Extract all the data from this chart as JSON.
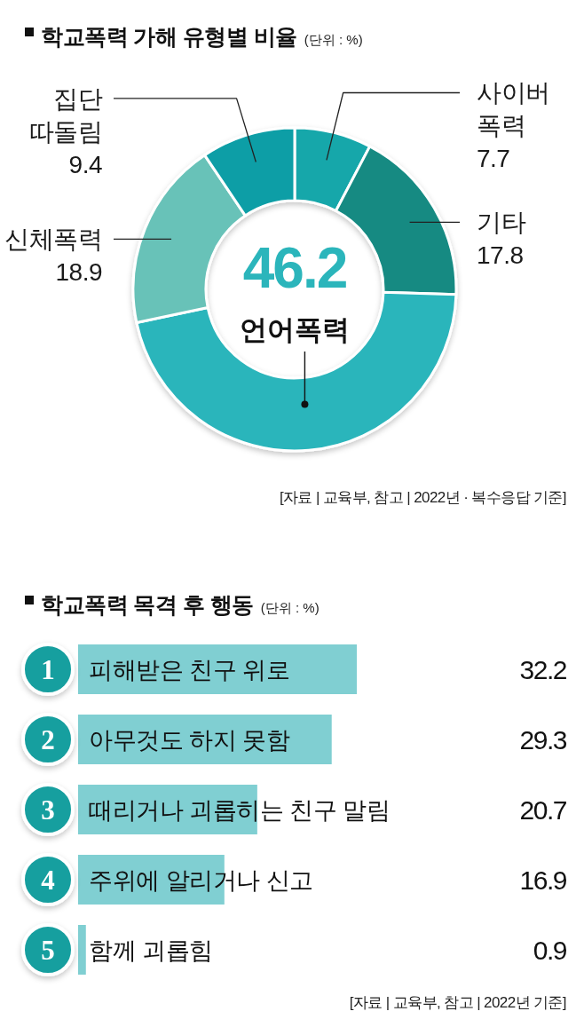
{
  "chart_data": [
    {
      "type": "donut",
      "title": "학교폭력 가해 유형별 비율",
      "subtitle": "(단위 : %)",
      "categories": [
        "사이버 폭력",
        "기타",
        "언어폭력",
        "신체폭력",
        "집단 따돌림"
      ],
      "values": [
        7.7,
        17.8,
        46.2,
        18.9,
        9.4
      ],
      "colors": [
        "#17a7aa",
        "#128a82",
        "#2bb5bb",
        "#68c2b8",
        "#0c9ea6"
      ],
      "data_labels": true,
      "annotations": [
        "[자료 | 교육부, 참고 | 2022년 · 복수응답 기준]"
      ]
    },
    {
      "type": "bar",
      "orientation": "horizontal",
      "title": "학교폭력 목격 후 행동",
      "subtitle": "(단위 : %)",
      "categories": [
        "피해받은 친구 위로",
        "아무것도 하지 못함",
        "때리거나 괴롭히는 친구 말림",
        "주위에 알리거나 신고",
        "함께 괴롭힘"
      ],
      "values": [
        32.2,
        29.3,
        20.7,
        16.9,
        0.9
      ],
      "color": "#80cfd2",
      "data_labels": true,
      "annotations": [
        "1",
        "2",
        "3",
        "4",
        "5",
        "[자료 | 교육부, 참고 | 2022년 기준]"
      ]
    }
  ]
}
